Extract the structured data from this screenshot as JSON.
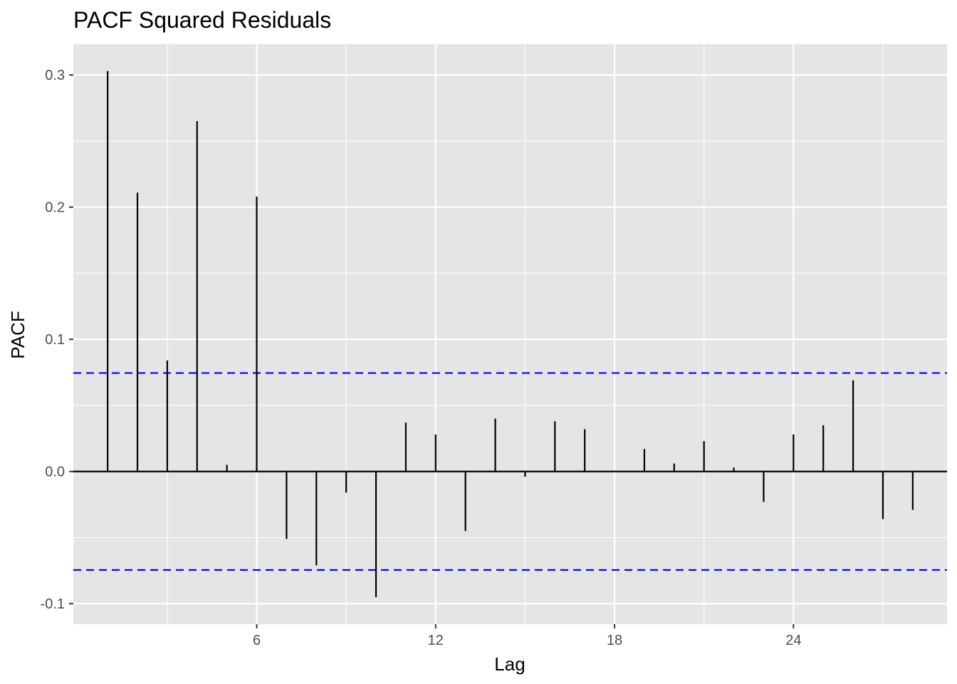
{
  "chart_data": {
    "type": "bar",
    "title": "PACF Squared Residuals",
    "xlabel": "Lag",
    "ylabel": "PACF",
    "x": [
      1,
      2,
      3,
      4,
      5,
      6,
      7,
      8,
      9,
      10,
      11,
      12,
      13,
      14,
      15,
      16,
      17,
      18,
      19,
      20,
      21,
      22,
      23,
      24,
      25,
      26,
      27,
      28
    ],
    "values": [
      0.303,
      0.211,
      0.084,
      0.265,
      0.005,
      0.208,
      -0.051,
      -0.071,
      -0.016,
      -0.095,
      0.037,
      0.028,
      -0.045,
      0.04,
      -0.004,
      0.038,
      0.032,
      0.0,
      0.017,
      0.006,
      0.023,
      0.003,
      -0.023,
      0.028,
      0.035,
      0.069,
      -0.036,
      -0.029
    ],
    "confidence_bounds": [
      -0.0745,
      0.0745
    ],
    "xlim": [
      -0.15,
      29.15
    ],
    "ylim": [
      -0.1155,
      0.3233
    ],
    "x_ticks": [
      6,
      12,
      18,
      24
    ],
    "y_ticks": [
      -0.1,
      0.0,
      0.1,
      0.2,
      0.3
    ],
    "x_tick_labels": [
      "6",
      "12",
      "18",
      "24"
    ],
    "y_tick_labels": [
      "-0.1",
      "0.0",
      "0.1",
      "0.2",
      "0.3"
    ],
    "grid": true,
    "colors": {
      "panel_background": "#e5e5e5",
      "grid": "#ffffff",
      "stem": "#000000",
      "zero_line": "#000000",
      "bound_line": "#0000ff"
    }
  }
}
